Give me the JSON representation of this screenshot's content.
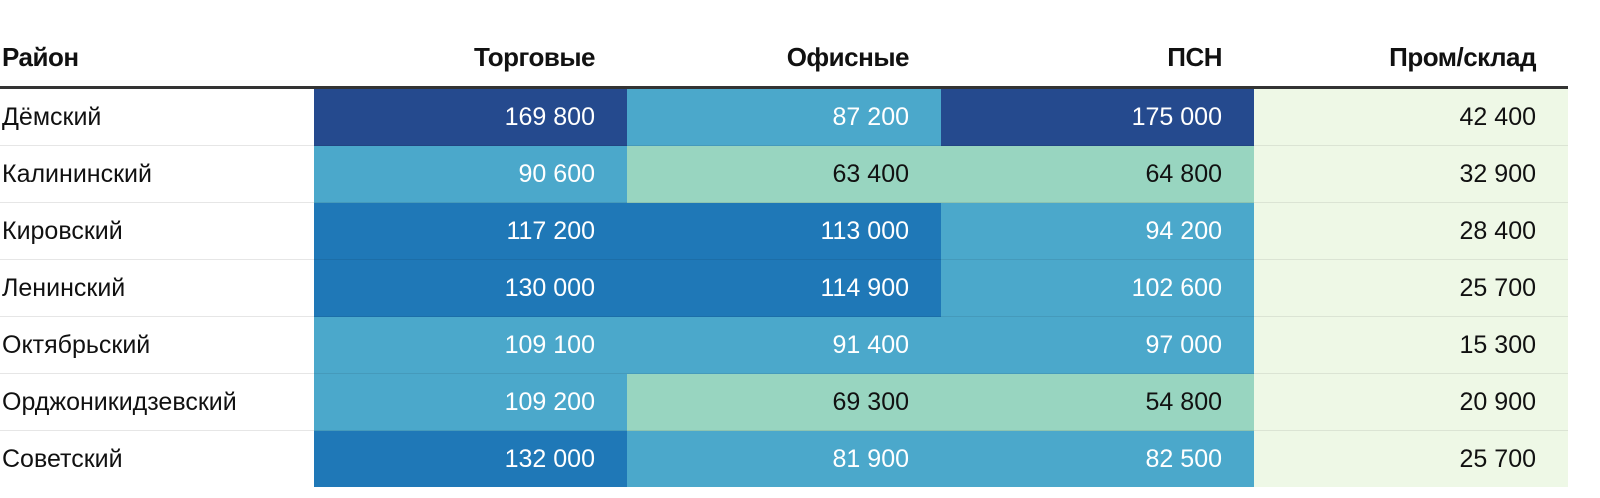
{
  "chart_data": {
    "type": "table",
    "row_header": "Район",
    "columns": [
      "Торговые",
      "Офисные",
      "ПСН",
      "Пром/склад"
    ],
    "rows": [
      {
        "name": "Дёмский",
        "values": [
          "169 800",
          "87 200",
          "175 000",
          "42 400"
        ],
        "numbers": [
          169800,
          87200,
          175000,
          42400
        ]
      },
      {
        "name": "Калининский",
        "values": [
          "90 600",
          "63 400",
          "64 800",
          "32 900"
        ],
        "numbers": [
          90600,
          63400,
          64800,
          32900
        ]
      },
      {
        "name": "Кировский",
        "values": [
          "117 200",
          "113 000",
          "94 200",
          "28 400"
        ],
        "numbers": [
          117200,
          113000,
          94200,
          28400
        ]
      },
      {
        "name": "Ленинский",
        "values": [
          "130 000",
          "114 900",
          "102 600",
          "25 700"
        ],
        "numbers": [
          130000,
          114900,
          102600,
          25700
        ]
      },
      {
        "name": "Октябрьский",
        "values": [
          "109 100",
          "91 400",
          "97 000",
          "15 300"
        ],
        "numbers": [
          109100,
          91400,
          97000,
          15300
        ]
      },
      {
        "name": "Орджоникидзевский",
        "values": [
          "109 200",
          "69 300",
          "54 800",
          "20 900"
        ],
        "numbers": [
          109200,
          69300,
          54800,
          20900
        ]
      },
      {
        "name": "Советский",
        "values": [
          "132 000",
          "81 900",
          "82 500",
          "25 700"
        ],
        "numbers": [
          132000,
          81900,
          82500,
          25700
        ]
      }
    ],
    "color_scale": [
      {
        "min": 0,
        "bg": "#eef8e6",
        "fg": "#111111"
      },
      {
        "min": 50000,
        "bg": "#98d5c0",
        "fg": "#111111"
      },
      {
        "min": 75000,
        "bg": "#4ba8cb",
        "fg": "#ffffff"
      },
      {
        "min": 110000,
        "bg": "#1f78b7",
        "fg": "#ffffff"
      },
      {
        "min": 150000,
        "bg": "#254a8e",
        "fg": "#ffffff"
      }
    ]
  }
}
